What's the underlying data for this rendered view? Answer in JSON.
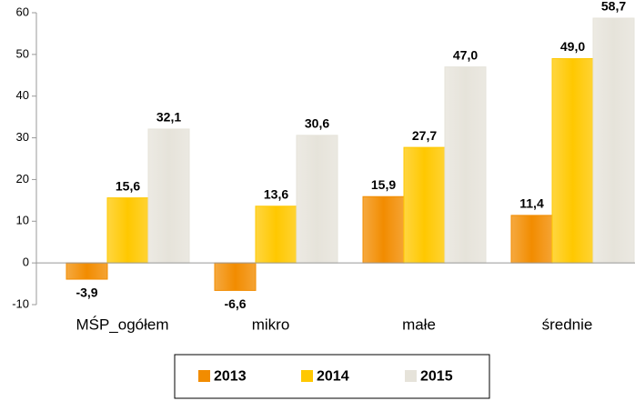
{
  "chart_data": {
    "type": "bar",
    "categories": [
      "MŚP_ogółem",
      "mikro",
      "małe",
      "średnie"
    ],
    "series": [
      {
        "name": "2013",
        "color": "#f28c00",
        "values": [
          -3.9,
          -6.6,
          15.9,
          11.4
        ],
        "value_labels": [
          "-3,9",
          "-6,6",
          "15,9",
          "11,4"
        ]
      },
      {
        "name": "2014",
        "color": "#ffc800",
        "values": [
          15.6,
          13.6,
          27.7,
          49.0
        ],
        "value_labels": [
          "15,6",
          "13,6",
          "27,7",
          "49,0"
        ]
      },
      {
        "name": "2015",
        "color": "#e6e3da",
        "values": [
          32.1,
          30.6,
          47.0,
          58.7
        ],
        "value_labels": [
          "32,1",
          "30,6",
          "47,0",
          "58,7"
        ]
      }
    ],
    "ylim": [
      -10,
      60
    ],
    "yticks": [
      -10,
      0,
      10,
      20,
      30,
      40,
      50,
      60
    ],
    "grid": false,
    "legend": "bottom"
  }
}
